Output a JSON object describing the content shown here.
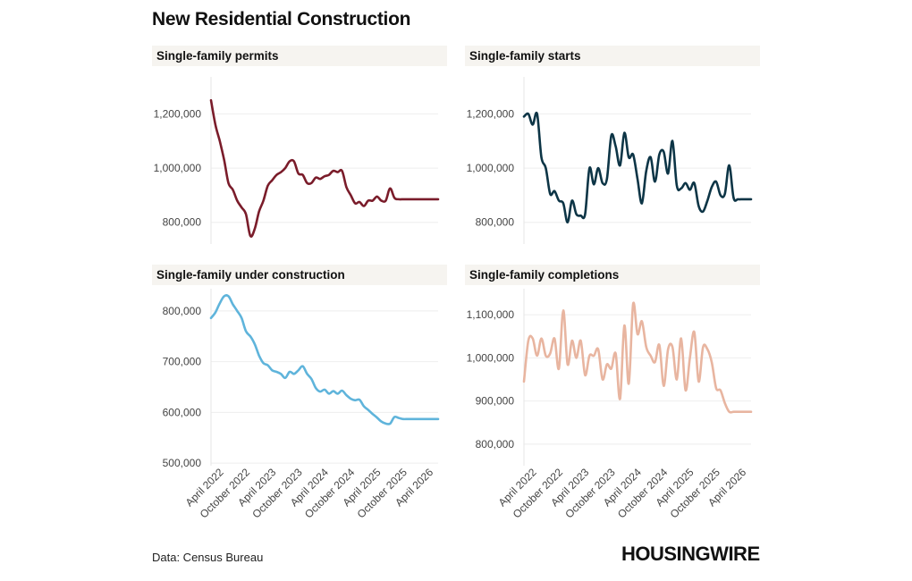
{
  "title": "New Residential Construction",
  "source": "Data: Census Bureau",
  "logo": "HOUSINGWIRE",
  "chart_data": [
    {
      "type": "line",
      "title": "Single-family permits",
      "color": "#7a1c2a",
      "ylim": [
        720000,
        1320000
      ],
      "yticks": [
        {
          "value": 800000,
          "label": "800,000"
        },
        {
          "value": 1000000,
          "label": "1,000,000"
        },
        {
          "value": 1200000,
          "label": "1,200,000"
        }
      ],
      "show_x_labels": false,
      "series": [
        {
          "x": [
            "2022-01",
            "2022-02",
            "2022-03",
            "2022-04",
            "2022-05",
            "2022-06",
            "2022-07",
            "2022-08",
            "2022-09",
            "2022-10",
            "2022-11",
            "2022-12",
            "2023-01",
            "2023-02",
            "2023-03",
            "2023-04",
            "2023-05",
            "2023-06",
            "2023-07",
            "2023-08",
            "2023-09",
            "2023-10",
            "2023-11",
            "2023-12",
            "2024-01",
            "2024-02",
            "2024-03",
            "2024-04",
            "2024-05",
            "2024-06",
            "2024-07",
            "2024-08",
            "2024-09",
            "2024-10",
            "2024-11",
            "2024-12",
            "2025-01",
            "2025-02",
            "2025-03",
            "2025-04",
            "2025-05",
            "2025-06",
            "2025-07",
            "2025-08",
            "2025-09",
            "2025-10",
            "2025-11",
            "2025-12",
            "2026-01",
            "2026-02",
            "2026-03",
            "2026-04",
            "2026-05"
          ],
          "y": [
            1250000,
            1160000,
            1100000,
            1030000,
            945000,
            920000,
            880000,
            855000,
            830000,
            750000,
            775000,
            840000,
            880000,
            935000,
            955000,
            975000,
            985000,
            1000000,
            1025000,
            1025000,
            980000,
            975000,
            945000,
            945000,
            965000,
            960000,
            970000,
            975000,
            990000,
            985000,
            990000,
            930000,
            900000,
            870000,
            875000,
            860000,
            880000,
            880000,
            895000,
            880000,
            880000,
            925000,
            890000,
            885000,
            885000,
            885000,
            885000,
            885000,
            885000,
            885000,
            885000,
            885000,
            885000
          ]
        }
      ]
    },
    {
      "type": "line",
      "title": "Single-family starts",
      "color": "#0d3546",
      "ylim": [
        720000,
        1320000
      ],
      "yticks": [
        {
          "value": 800000,
          "label": "800,000"
        },
        {
          "value": 1000000,
          "label": "1,000,000"
        },
        {
          "value": 1200000,
          "label": "1,200,000"
        }
      ],
      "show_x_labels": false,
      "series": [
        {
          "x": [
            "2022-01",
            "2022-02",
            "2022-03",
            "2022-04",
            "2022-05",
            "2022-06",
            "2022-07",
            "2022-08",
            "2022-09",
            "2022-10",
            "2022-11",
            "2022-12",
            "2023-01",
            "2023-02",
            "2023-03",
            "2023-04",
            "2023-05",
            "2023-06",
            "2023-07",
            "2023-08",
            "2023-09",
            "2023-10",
            "2023-11",
            "2023-12",
            "2024-01",
            "2024-02",
            "2024-03",
            "2024-04",
            "2024-05",
            "2024-06",
            "2024-07",
            "2024-08",
            "2024-09",
            "2024-10",
            "2024-11",
            "2024-12",
            "2025-01",
            "2025-02",
            "2025-03",
            "2025-04",
            "2025-05",
            "2025-06",
            "2025-07",
            "2025-08",
            "2025-09",
            "2025-10",
            "2025-11",
            "2025-12",
            "2026-01",
            "2026-02",
            "2026-03",
            "2026-04",
            "2026-05"
          ],
          "y": [
            1190000,
            1200000,
            1160000,
            1200000,
            1040000,
            1000000,
            905000,
            915000,
            880000,
            870000,
            800000,
            880000,
            830000,
            825000,
            830000,
            1000000,
            940000,
            1000000,
            945000,
            960000,
            1120000,
            1080000,
            1010000,
            1130000,
            1040000,
            1050000,
            960000,
            870000,
            990000,
            1040000,
            950000,
            1050000,
            1060000,
            980000,
            1100000,
            935000,
            925000,
            945000,
            920000,
            945000,
            860000,
            840000,
            880000,
            930000,
            950000,
            900000,
            905000,
            1010000,
            890000,
            885000,
            885000,
            885000,
            885000
          ]
        }
      ]
    },
    {
      "type": "line",
      "title": "Single-family under construction",
      "color": "#5fb4db",
      "ylim": [
        495000,
        835000
      ],
      "yticks": [
        {
          "value": 500000,
          "label": "500,000"
        },
        {
          "value": 600000,
          "label": "600,000"
        },
        {
          "value": 700000,
          "label": "700,000"
        },
        {
          "value": 800000,
          "label": "800,000"
        }
      ],
      "show_x_labels": true,
      "series": [
        {
          "x": [
            "2022-01",
            "2022-02",
            "2022-03",
            "2022-04",
            "2022-05",
            "2022-06",
            "2022-07",
            "2022-08",
            "2022-09",
            "2022-10",
            "2022-11",
            "2022-12",
            "2023-01",
            "2023-02",
            "2023-03",
            "2023-04",
            "2023-05",
            "2023-06",
            "2023-07",
            "2023-08",
            "2023-09",
            "2023-10",
            "2023-11",
            "2023-12",
            "2024-01",
            "2024-02",
            "2024-03",
            "2024-04",
            "2024-05",
            "2024-06",
            "2024-07",
            "2024-08",
            "2024-09",
            "2024-10",
            "2024-11",
            "2024-12",
            "2025-01",
            "2025-02",
            "2025-03",
            "2025-04",
            "2025-05",
            "2025-06",
            "2025-07",
            "2025-08",
            "2025-09",
            "2025-10",
            "2025-11",
            "2025-12",
            "2026-01",
            "2026-02",
            "2026-03",
            "2026-04",
            "2026-05"
          ],
          "y": [
            786000,
            797000,
            815000,
            829000,
            829000,
            813000,
            800000,
            786000,
            760000,
            750000,
            735000,
            712000,
            697000,
            693000,
            683000,
            680000,
            676000,
            668000,
            680000,
            676000,
            683000,
            691000,
            676000,
            666000,
            648000,
            641000,
            645000,
            637000,
            642000,
            637000,
            643000,
            634000,
            627000,
            624000,
            625000,
            612000,
            605000,
            597000,
            590000,
            582000,
            578000,
            578000,
            591000,
            589000,
            587000,
            587000,
            587000,
            587000,
            587000,
            587000,
            587000,
            587000,
            587000
          ]
        }
      ]
    },
    {
      "type": "line",
      "title": "Single-family completions",
      "color": "#e8b5a0",
      "ylim": [
        750000,
        1150000
      ],
      "yticks": [
        {
          "value": 800000,
          "label": "800,000"
        },
        {
          "value": 900000,
          "label": "900,000"
        },
        {
          "value": 1000000,
          "label": "1,000,000"
        },
        {
          "value": 1100000,
          "label": "1,100,000"
        }
      ],
      "show_x_labels": true,
      "series": [
        {
          "x": [
            "2022-01",
            "2022-02",
            "2022-03",
            "2022-04",
            "2022-05",
            "2022-06",
            "2022-07",
            "2022-08",
            "2022-09",
            "2022-10",
            "2022-11",
            "2022-12",
            "2023-01",
            "2023-02",
            "2023-03",
            "2023-04",
            "2023-05",
            "2023-06",
            "2023-07",
            "2023-08",
            "2023-09",
            "2023-10",
            "2023-11",
            "2023-12",
            "2024-01",
            "2024-02",
            "2024-03",
            "2024-04",
            "2024-05",
            "2024-06",
            "2024-07",
            "2024-08",
            "2024-09",
            "2024-10",
            "2024-11",
            "2024-12",
            "2025-01",
            "2025-02",
            "2025-03",
            "2025-04",
            "2025-05",
            "2025-06",
            "2025-07",
            "2025-08",
            "2025-09",
            "2025-10",
            "2025-11",
            "2025-12",
            "2026-01",
            "2026-02",
            "2026-03",
            "2026-04",
            "2026-05"
          ],
          "y": [
            945000,
            1040000,
            1045000,
            1005000,
            1045000,
            1005000,
            1010000,
            1045000,
            975000,
            1110000,
            985000,
            1040000,
            1000000,
            1040000,
            960000,
            1005000,
            1005000,
            1020000,
            950000,
            985000,
            975000,
            1010000,
            905000,
            1075000,
            940000,
            1125000,
            1055000,
            1085000,
            1025000,
            1005000,
            990000,
            1030000,
            935000,
            1020000,
            1025000,
            950000,
            1045000,
            925000,
            1000000,
            1060000,
            945000,
            1025000,
            1020000,
            990000,
            930000,
            925000,
            895000,
            875000,
            875000,
            875000,
            875000,
            875000,
            875000
          ]
        }
      ]
    }
  ],
  "x_axis_labels": [
    "April 2022",
    "October 2022",
    "April 2023",
    "October 2023",
    "April 2024",
    "October 2024",
    "April 2025",
    "October 2025",
    "April 2026"
  ]
}
